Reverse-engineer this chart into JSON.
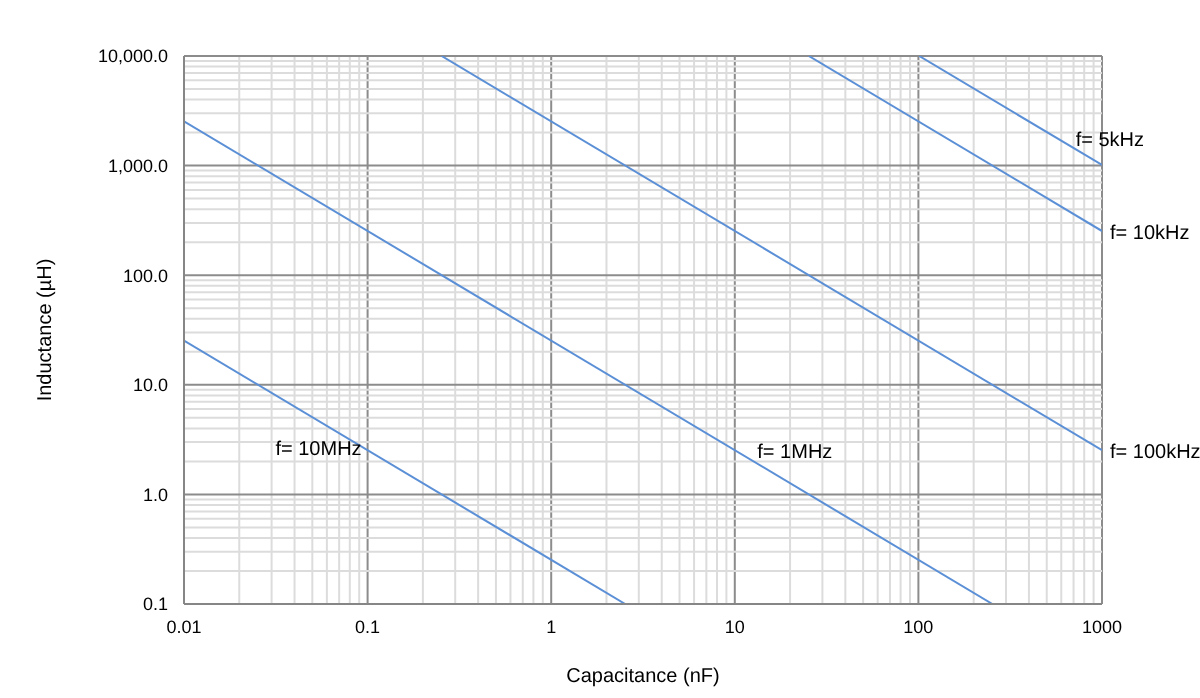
{
  "chart_data": {
    "type": "line",
    "xlabel": "Capacitance (nF)",
    "ylabel": "Inductance (µH)",
    "log": "xy",
    "grid": true,
    "marker": "none",
    "line_style": "solid",
    "xlim": [
      0.01,
      1000
    ],
    "ylim": [
      0.1,
      10000
    ],
    "xticks": [
      0.01,
      {
        "value": 0.02,
        "label": null
      },
      {
        "value": 0.03,
        "label": null
      },
      {
        "value": 0.04,
        "label": null
      },
      {
        "value": 0.05,
        "label": null
      },
      {
        "value": 0.06,
        "label": null
      },
      {
        "value": 0.07,
        "label": null
      },
      {
        "value": 0.08,
        "label": null
      },
      {
        "value": 0.09,
        "label": null
      },
      0.1,
      {
        "value": 0.2,
        "label": null
      },
      {
        "value": 0.3,
        "label": null
      },
      {
        "value": 0.4,
        "label": null
      },
      {
        "value": 0.5,
        "label": null
      },
      {
        "value": 0.6,
        "label": null
      },
      {
        "value": 0.7,
        "label": null
      },
      {
        "value": 0.8,
        "label": null
      },
      {
        "value": 0.9,
        "label": null
      },
      1,
      {
        "value": 2,
        "label": null
      },
      {
        "value": 3,
        "label": null
      },
      {
        "value": 4,
        "label": null
      },
      {
        "value": 5,
        "label": null
      },
      {
        "value": 6,
        "label": null
      },
      {
        "value": 7,
        "label": null
      },
      {
        "value": 8,
        "label": null
      },
      {
        "value": 9,
        "label": null
      },
      10,
      {
        "value": 20,
        "label": null
      },
      {
        "value": 30,
        "label": null
      },
      {
        "value": 40,
        "label": null
      },
      {
        "value": 50,
        "label": null
      },
      {
        "value": 60,
        "label": null
      },
      {
        "value": 70,
        "label": null
      },
      {
        "value": 80,
        "label": null
      },
      {
        "value": 90,
        "label": null
      },
      100,
      {
        "value": 200,
        "label": null
      },
      {
        "value": 300,
        "label": null
      },
      {
        "value": 400,
        "label": null
      },
      {
        "value": 500,
        "label": null
      },
      {
        "value": 600,
        "label": null
      },
      {
        "value": 700,
        "label": null
      },
      {
        "value": 800,
        "label": null
      },
      {
        "value": 900,
        "label": null
      },
      1000
    ],
    "yticks": [
      {
        "value": 0.1,
        "label": "0.1"
      },
      {
        "value": 0.2,
        "label": null
      },
      {
        "value": 0.3,
        "label": null
      },
      {
        "value": 0.4,
        "label": null
      },
      {
        "value": 0.5,
        "label": null
      },
      {
        "value": 0.6,
        "label": null
      },
      {
        "value": 0.7,
        "label": null
      },
      {
        "value": 0.8,
        "label": null
      },
      {
        "value": 0.9,
        "label": null
      },
      {
        "value": 1,
        "label": "1.0"
      },
      {
        "value": 2,
        "label": null
      },
      {
        "value": 3,
        "label": null
      },
      {
        "value": 4,
        "label": null
      },
      {
        "value": 5,
        "label": null
      },
      {
        "value": 6,
        "label": null
      },
      {
        "value": 7,
        "label": null
      },
      {
        "value": 8,
        "label": null
      },
      {
        "value": 9,
        "label": null
      },
      {
        "value": 10,
        "label": "10.0"
      },
      {
        "value": 20,
        "label": null
      },
      {
        "value": 30,
        "label": null
      },
      {
        "value": 40,
        "label": null
      },
      {
        "value": 50,
        "label": null
      },
      {
        "value": 60,
        "label": null
      },
      {
        "value": 70,
        "label": null
      },
      {
        "value": 80,
        "label": null
      },
      {
        "value": 90,
        "label": null
      },
      {
        "value": 100,
        "label": "100.0"
      },
      {
        "value": 200,
        "label": null
      },
      {
        "value": 300,
        "label": null
      },
      {
        "value": 400,
        "label": null
      },
      {
        "value": 500,
        "label": null
      },
      {
        "value": 600,
        "label": null
      },
      {
        "value": 700,
        "label": null
      },
      {
        "value": 800,
        "label": null
      },
      {
        "value": 900,
        "label": null
      },
      {
        "value": 1000,
        "label": "1,000.0"
      },
      {
        "value": 2000,
        "label": null
      },
      {
        "value": 3000,
        "label": null
      },
      {
        "value": 4000,
        "label": null
      },
      {
        "value": 5000,
        "label": null
      },
      {
        "value": 6000,
        "label": null
      },
      {
        "value": 7000,
        "label": null
      },
      {
        "value": 8000,
        "label": null
      },
      {
        "value": 9000,
        "label": null
      },
      {
        "value": 10000,
        "label": "10,000.0"
      }
    ],
    "series": [
      {
        "color": "#5b8fd6",
        "x": [
          101,
          1000
        ],
        "values": [
          10000,
          1013
        ]
      },
      {
        "color": "#5b8fd6",
        "x": [
          25.3,
          1000
        ],
        "values": [
          10000,
          253
        ]
      },
      {
        "color": "#5b8fd6",
        "x": [
          0.253,
          1000
        ],
        "values": [
          10000,
          2.53
        ]
      },
      {
        "color": "#5b8fd6",
        "x": [
          0.01,
          253
        ],
        "values": [
          2533,
          0.1
        ]
      },
      {
        "color": "#5b8fd6",
        "x": [
          0.01,
          2.53
        ],
        "values": [
          25.3,
          0.1
        ]
      }
    ],
    "annotations": [
      {
        "text": "f= 5kHz",
        "x": 650,
        "y": 1700
      },
      {
        "text": "f= 10kHz",
        "x": 1000,
        "y": 240
      },
      {
        "text": "f= 100kHz",
        "x": 1000,
        "y": 2.4
      },
      {
        "text": "f= 1MHz",
        "x": 12,
        "y": 2.4
      },
      {
        "text": "f= 10MHz",
        "x": 0.1,
        "y": 2.53
      }
    ]
  }
}
